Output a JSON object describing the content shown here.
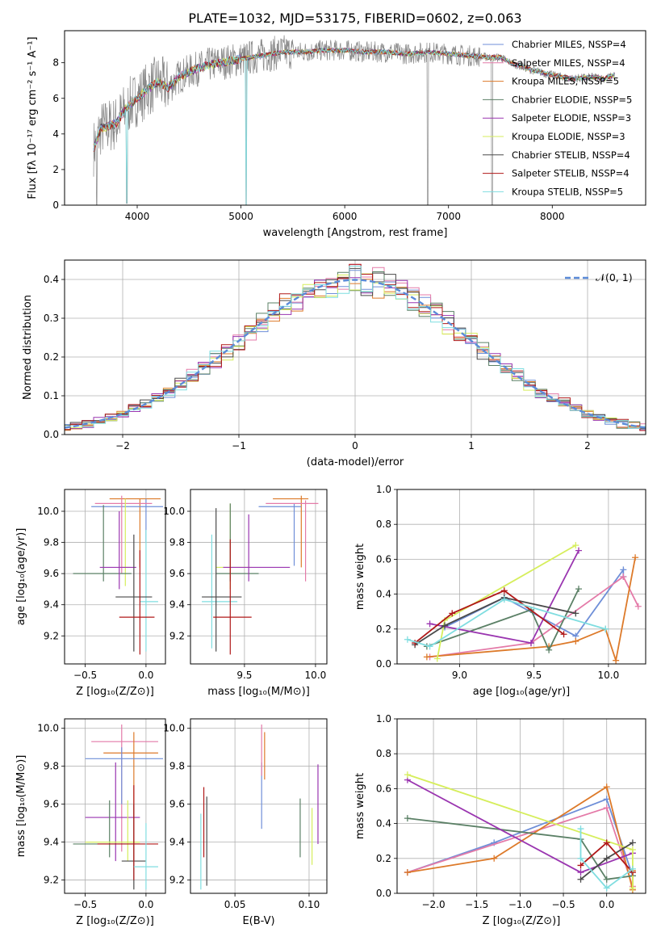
{
  "figure_title": "PLATE=1032, MJD=53175, FIBERID=0602, z=0.063",
  "colors": {
    "chabrier_miles": "#6f8fd8",
    "salpeter_miles": "#e47aa8",
    "kroupa_miles": "#dd7a2a",
    "chabrier_elodie": "#5b8066",
    "salpeter_elodie": "#9a35b0",
    "kroupa_elodie": "#d6ee5c",
    "chabrier_stelib": "#4a4a4a",
    "salpeter_stelib": "#b01818",
    "kroupa_stelib": "#7fdde0",
    "data_gray": "#888888",
    "normal_curve": "#5b8bd8",
    "grid": "#b0b0b0"
  },
  "chart_data": [
    {
      "id": "spectrum",
      "type": "line",
      "xlabel": "wavelength [Angstrom, rest frame]",
      "ylabel": "Flux [fλ 10⁻¹⁷ erg cm⁻² s⁻¹ A⁻¹]",
      "xlim": [
        3300,
        8900
      ],
      "ylim": [
        0,
        9.8
      ],
      "xticks": [
        "4000",
        "5000",
        "6000",
        "7000",
        "8000"
      ],
      "yticks": [
        "0",
        "2",
        "4",
        "6",
        "8"
      ],
      "legend_position": "right",
      "legend": [
        "Chabrier MILES, NSSP=4",
        "Salpeter MILES, NSSP=4",
        "Kroupa MILES, NSSP=5",
        "Chabrier ELODIE, NSSP=5",
        "Salpeter ELODIE, NSSP=3",
        "Kroupa ELODIE, NSSP=3",
        "Chabrier STELIB, NSSP=4",
        "Salpeter STELIB, NSSP=4",
        "Kroupa STELIB, NSSP=5"
      ],
      "data_continuum": [
        [
          3580,
          3.2
        ],
        [
          3650,
          4.3
        ],
        [
          3800,
          4.6
        ],
        [
          3900,
          5.5
        ],
        [
          4000,
          6.0
        ],
        [
          4100,
          6.5
        ],
        [
          4200,
          6.9
        ],
        [
          4300,
          6.6
        ],
        [
          4400,
          7.2
        ],
        [
          4500,
          7.5
        ],
        [
          4600,
          7.7
        ],
        [
          4700,
          7.9
        ],
        [
          4800,
          8.0
        ],
        [
          4900,
          8.1
        ],
        [
          5000,
          8.2
        ],
        [
          5100,
          8.3
        ],
        [
          5200,
          8.4
        ],
        [
          5300,
          8.5
        ],
        [
          5400,
          8.6
        ],
        [
          5600,
          8.6
        ],
        [
          5800,
          8.7
        ],
        [
          6000,
          8.7
        ],
        [
          6200,
          8.6
        ],
        [
          6400,
          8.6
        ],
        [
          6600,
          8.5
        ],
        [
          6800,
          8.6
        ],
        [
          7000,
          8.5
        ],
        [
          7200,
          8.4
        ],
        [
          7400,
          8.3
        ],
        [
          7500,
          8.3
        ],
        [
          7600,
          8.0
        ],
        [
          7800,
          7.6
        ],
        [
          8000,
          7.3
        ],
        [
          8200,
          7.1
        ],
        [
          8400,
          7.2
        ],
        [
          8500,
          7.1
        ],
        [
          8600,
          7.3
        ]
      ],
      "absorption_lines": [
        [
          3610,
          0.0
        ],
        [
          3900,
          0.1
        ],
        [
          5050,
          0.0
        ],
        [
          6800,
          0.0
        ],
        [
          7420,
          0.0
        ]
      ]
    },
    {
      "id": "residuals",
      "type": "bar",
      "xlabel": "(data-model)/error",
      "ylabel": "Normed distribution",
      "xlim": [
        -2.5,
        2.5
      ],
      "ylim": [
        0,
        0.45
      ],
      "xticks": [
        "−2",
        "−1",
        "0",
        "1",
        "2"
      ],
      "yticks": [
        "0.0",
        "0.1",
        "0.2",
        "0.3",
        "0.4"
      ],
      "legend_position": "top-right",
      "legend": [
        "𝒩(0, 1)"
      ],
      "bin_width": 0.1
    },
    {
      "id": "age_vs_z",
      "type": "scatter",
      "xlabel": "Z [log₁₀(Z/Z⊙)]",
      "ylabel": "age  [log₁₀(age/yr)]",
      "xlim": [
        -0.67,
        0.16
      ],
      "ylim": [
        9.02,
        10.14
      ],
      "xticks": [
        "−0.5",
        "0.0"
      ],
      "yticks": [
        "9.2",
        "9.4",
        "9.6",
        "9.8",
        "10.0"
      ],
      "points": [
        {
          "c": "kroupa_miles",
          "x": -0.05,
          "y": 10.08,
          "xlo": -0.3,
          "xhi": 0.12,
          "ylo": 9.64,
          "yhi": 10.08
        },
        {
          "c": "chabrier_miles",
          "x": 0.0,
          "y": 10.03,
          "xlo": -0.45,
          "xhi": 0.14,
          "ylo": 9.8,
          "yhi": 10.08
        },
        {
          "c": "salpeter_miles",
          "x": -0.2,
          "y": 10.05,
          "xlo": -0.42,
          "xhi": 0.05,
          "ylo": 9.6,
          "yhi": 10.1
        },
        {
          "c": "kroupa_elodie",
          "x": -0.17,
          "y": 9.64,
          "xlo": -0.2,
          "xhi": -0.13,
          "ylo": 9.52,
          "yhi": 10.08
        },
        {
          "c": "chabrier_elodie",
          "x": -0.35,
          "y": 9.6,
          "xlo": -0.6,
          "xhi": -0.12,
          "ylo": 9.55,
          "yhi": 10.04
        },
        {
          "c": "salpeter_elodie",
          "x": -0.22,
          "y": 9.64,
          "xlo": -0.38,
          "xhi": -0.08,
          "ylo": 9.5,
          "yhi": 10.0
        },
        {
          "c": "kroupa_stelib",
          "x": 0.0,
          "y": 9.42,
          "xlo": -0.05,
          "xhi": 0.1,
          "ylo": 9.1,
          "yhi": 9.88
        },
        {
          "c": "chabrier_stelib",
          "x": -0.1,
          "y": 9.45,
          "xlo": -0.25,
          "xhi": 0.05,
          "ylo": 9.1,
          "yhi": 9.85
        },
        {
          "c": "salpeter_stelib",
          "x": -0.05,
          "y": 9.32,
          "xlo": -0.22,
          "xhi": 0.07,
          "ylo": 9.08,
          "yhi": 9.75
        }
      ]
    },
    {
      "id": "age_vs_mass",
      "type": "scatter",
      "xlabel": "mass [log₁₀(M/M⊙)]",
      "ylabel": "",
      "xlim": [
        9.12,
        10.08
      ],
      "ylim": [
        9.02,
        10.14
      ],
      "xticks": [
        "9.5",
        "10.0"
      ],
      "yticks": [
        "9.2",
        "9.4",
        "9.6",
        "9.8",
        "10.0"
      ],
      "points": [
        {
          "c": "kroupa_miles",
          "x": 9.9,
          "y": 10.08,
          "xlo": 9.7,
          "xhi": 9.95,
          "ylo": 9.64,
          "yhi": 10.1
        },
        {
          "c": "chabrier_miles",
          "x": 9.85,
          "y": 10.03,
          "xlo": 9.6,
          "xhi": 9.9,
          "ylo": 9.65,
          "yhi": 10.05
        },
        {
          "c": "salpeter_miles",
          "x": 9.93,
          "y": 10.05,
          "xlo": 9.65,
          "xhi": 10.02,
          "ylo": 9.55,
          "yhi": 10.07
        },
        {
          "c": "kroupa_elodie",
          "x": 9.4,
          "y": 9.64,
          "xlo": 9.3,
          "xhi": 9.55,
          "ylo": 9.5,
          "yhi": 10.05
        },
        {
          "c": "chabrier_elodie",
          "x": 9.4,
          "y": 9.6,
          "xlo": 9.3,
          "xhi": 9.6,
          "ylo": 9.55,
          "yhi": 10.05
        },
        {
          "c": "salpeter_elodie",
          "x": 9.53,
          "y": 9.64,
          "xlo": 9.35,
          "xhi": 9.82,
          "ylo": 9.55,
          "yhi": 9.98
        },
        {
          "c": "kroupa_stelib",
          "x": 9.27,
          "y": 9.42,
          "xlo": 9.2,
          "xhi": 9.45,
          "ylo": 9.12,
          "yhi": 9.85
        },
        {
          "c": "chabrier_stelib",
          "x": 9.3,
          "y": 9.45,
          "xlo": 9.2,
          "xhi": 9.48,
          "ylo": 9.1,
          "yhi": 10.02
        },
        {
          "c": "salpeter_stelib",
          "x": 9.4,
          "y": 9.32,
          "xlo": 9.28,
          "xhi": 9.55,
          "ylo": 9.08,
          "yhi": 9.82
        }
      ]
    },
    {
      "id": "weight_vs_age",
      "type": "line",
      "xlabel": "age  [log₁₀(age/yr)]",
      "ylabel": "mass weight",
      "xlim": [
        8.58,
        10.25
      ],
      "ylim": [
        0,
        1.0
      ],
      "xticks": [
        "9.0",
        "9.5",
        "10.0"
      ],
      "yticks": [
        "0.0",
        "0.2",
        "0.4",
        "0.6",
        "0.8",
        "1.0"
      ],
      "series": [
        {
          "c": "chabrier_miles",
          "x": [
            8.9,
            9.3,
            9.78,
            10.1,
            10.1
          ],
          "y": [
            0.21,
            0.38,
            0.16,
            0.54,
            0.5
          ]
        },
        {
          "c": "salpeter_miles",
          "x": [
            8.8,
            9.48,
            10.1,
            10.2
          ],
          "y": [
            0.04,
            0.12,
            0.5,
            0.33
          ]
        },
        {
          "c": "kroupa_miles",
          "x": [
            8.78,
            9.6,
            9.78,
            9.98,
            10.05,
            10.18
          ],
          "y": [
            0.04,
            0.1,
            0.13,
            0.2,
            0.02,
            0.61
          ]
        },
        {
          "c": "chabrier_elodie",
          "x": [
            8.78,
            9.48,
            9.6,
            9.8
          ],
          "y": [
            0.1,
            0.31,
            0.08,
            0.43
          ]
        },
        {
          "c": "salpeter_elodie",
          "x": [
            8.8,
            9.48,
            9.8
          ],
          "y": [
            0.23,
            0.12,
            0.65
          ]
        },
        {
          "c": "kroupa_elodie",
          "x": [
            8.85,
            8.9,
            9.78
          ],
          "y": [
            0.03,
            0.25,
            0.68
          ]
        },
        {
          "c": "chabrier_stelib",
          "x": [
            8.7,
            8.9,
            9.3,
            9.78
          ],
          "y": [
            0.11,
            0.22,
            0.38,
            0.29
          ]
        },
        {
          "c": "salpeter_stelib",
          "x": [
            8.7,
            8.95,
            9.3,
            9.7
          ],
          "y": [
            0.12,
            0.29,
            0.42,
            0.17
          ]
        },
        {
          "c": "kroupa_stelib",
          "x": [
            8.65,
            8.8,
            9.3,
            9.98,
            9.98
          ],
          "y": [
            0.14,
            0.1,
            0.37,
            0.2,
            0.2
          ]
        }
      ]
    },
    {
      "id": "mass_vs_z",
      "type": "scatter",
      "xlabel": "Z [log₁₀(Z/Z⊙)]",
      "ylabel": "mass [log₁₀(M/M⊙)]",
      "xlim": [
        -0.67,
        0.16
      ],
      "ylim": [
        9.13,
        10.05
      ],
      "xticks": [
        "−0.5",
        "0.0"
      ],
      "yticks": [
        "9.2",
        "9.4",
        "9.6",
        "9.8",
        "10.0"
      ],
      "points": [
        {
          "c": "salpeter_miles",
          "x": -0.2,
          "y": 9.93,
          "xlo": -0.45,
          "xhi": 0.1,
          "ylo": 9.35,
          "yhi": 10.02
        },
        {
          "c": "kroupa_miles",
          "x": -0.1,
          "y": 9.87,
          "xlo": -0.35,
          "xhi": 0.1,
          "ylo": 9.3,
          "yhi": 9.98
        },
        {
          "c": "chabrier_miles",
          "x": -0.2,
          "y": 9.84,
          "xlo": -0.5,
          "xhi": 0.14,
          "ylo": 9.6,
          "yhi": 9.9
        },
        {
          "c": "salpeter_elodie",
          "x": -0.25,
          "y": 9.53,
          "xlo": -0.5,
          "xhi": -0.05,
          "ylo": 9.3,
          "yhi": 9.82
        },
        {
          "c": "chabrier_elodie",
          "x": -0.3,
          "y": 9.39,
          "xlo": -0.6,
          "xhi": -0.05,
          "ylo": 9.32,
          "yhi": 9.62
        },
        {
          "c": "kroupa_elodie",
          "x": -0.15,
          "y": 9.4,
          "xlo": -0.5,
          "xhi": -0.05,
          "ylo": 9.3,
          "yhi": 9.62
        },
        {
          "c": "chabrier_stelib",
          "x": -0.1,
          "y": 9.3,
          "xlo": -0.2,
          "xhi": 0.0,
          "ylo": 9.15,
          "yhi": 9.6
        },
        {
          "c": "salpeter_stelib",
          "x": -0.1,
          "y": 9.39,
          "xlo": -0.4,
          "xhi": 0.1,
          "ylo": 9.2,
          "yhi": 9.7
        },
        {
          "c": "kroupa_stelib",
          "x": 0.0,
          "y": 9.27,
          "xlo": -0.1,
          "xhi": 0.1,
          "ylo": 9.15,
          "yhi": 9.5
        }
      ]
    },
    {
      "id": "mass_vs_ebv",
      "type": "scatter",
      "xlabel": "E(B-V)",
      "ylabel": "",
      "xlim": [
        0.02,
        0.112
      ],
      "ylim": [
        9.13,
        10.05
      ],
      "xticks": [
        "0.05",
        "0.10"
      ],
      "yticks": [
        "9.2",
        "9.4",
        "9.6",
        "9.8",
        "10.0"
      ],
      "points": [
        {
          "c": "kroupa_stelib",
          "x": 0.027,
          "ylo": 9.15,
          "yhi": 9.55
        },
        {
          "c": "salpeter_stelib",
          "x": 0.029,
          "ylo": 9.32,
          "yhi": 9.69
        },
        {
          "c": "chabrier_stelib",
          "x": 0.031,
          "ylo": 9.17,
          "yhi": 9.64
        },
        {
          "c": "chabrier_miles",
          "x": 0.068,
          "ylo": 9.47,
          "yhi": 9.82
        },
        {
          "c": "salpeter_miles",
          "x": 0.068,
          "ylo": 9.75,
          "yhi": 10.02
        },
        {
          "c": "kroupa_miles",
          "x": 0.07,
          "ylo": 9.73,
          "yhi": 9.98
        },
        {
          "c": "chabrier_elodie",
          "x": 0.094,
          "ylo": 9.32,
          "yhi": 9.63
        },
        {
          "c": "kroupa_elodie",
          "x": 0.102,
          "ylo": 9.28,
          "yhi": 9.58
        },
        {
          "c": "salpeter_elodie",
          "x": 0.106,
          "ylo": 9.39,
          "yhi": 9.81
        }
      ]
    },
    {
      "id": "weight_vs_z",
      "type": "line",
      "xlabel": "Z [log₁₀(Z/Z⊙)]",
      "ylabel": "mass weight",
      "xlim": [
        -2.42,
        0.45
      ],
      "ylim": [
        0,
        1.0
      ],
      "xticks": [
        "−2.0",
        "−1.5",
        "−1.0",
        "−0.5",
        "0.0"
      ],
      "yticks": [
        "0.0",
        "0.2",
        "0.4",
        "0.6",
        "0.8",
        "1.0"
      ],
      "series": [
        {
          "c": "chabrier_miles",
          "x": [
            -2.3,
            -1.3,
            0.0,
            0.3
          ],
          "y": [
            0.12,
            0.29,
            0.54,
            0.1
          ]
        },
        {
          "c": "salpeter_miles",
          "x": [
            -2.3,
            0.0,
            0.3
          ],
          "y": [
            0.12,
            0.49,
            0.04
          ]
        },
        {
          "c": "kroupa_miles",
          "x": [
            -2.3,
            -1.3,
            0.0,
            0.3,
            0.3
          ],
          "y": [
            0.12,
            0.2,
            0.61,
            0.02,
            0.13
          ]
        },
        {
          "c": "chabrier_elodie",
          "x": [
            -2.3,
            -0.3,
            0.0,
            0.3
          ],
          "y": [
            0.43,
            0.31,
            0.08,
            0.1
          ]
        },
        {
          "c": "salpeter_elodie",
          "x": [
            -2.3,
            -0.3,
            0.3
          ],
          "y": [
            0.65,
            0.12,
            0.23
          ]
        },
        {
          "c": "kroupa_elodie",
          "x": [
            -2.3,
            0.3,
            0.3
          ],
          "y": [
            0.68,
            0.25,
            0.03
          ]
        },
        {
          "c": "chabrier_stelib",
          "x": [
            -0.3,
            0.0,
            0.3
          ],
          "y": [
            0.08,
            0.2,
            0.29
          ]
        },
        {
          "c": "salpeter_stelib",
          "x": [
            -0.3,
            0.0,
            0.3
          ],
          "y": [
            0.16,
            0.29,
            0.12
          ]
        },
        {
          "c": "kroupa_stelib",
          "x": [
            -0.3,
            -0.3,
            0.0,
            0.3
          ],
          "y": [
            0.37,
            0.2,
            0.03,
            0.14
          ]
        }
      ]
    }
  ]
}
